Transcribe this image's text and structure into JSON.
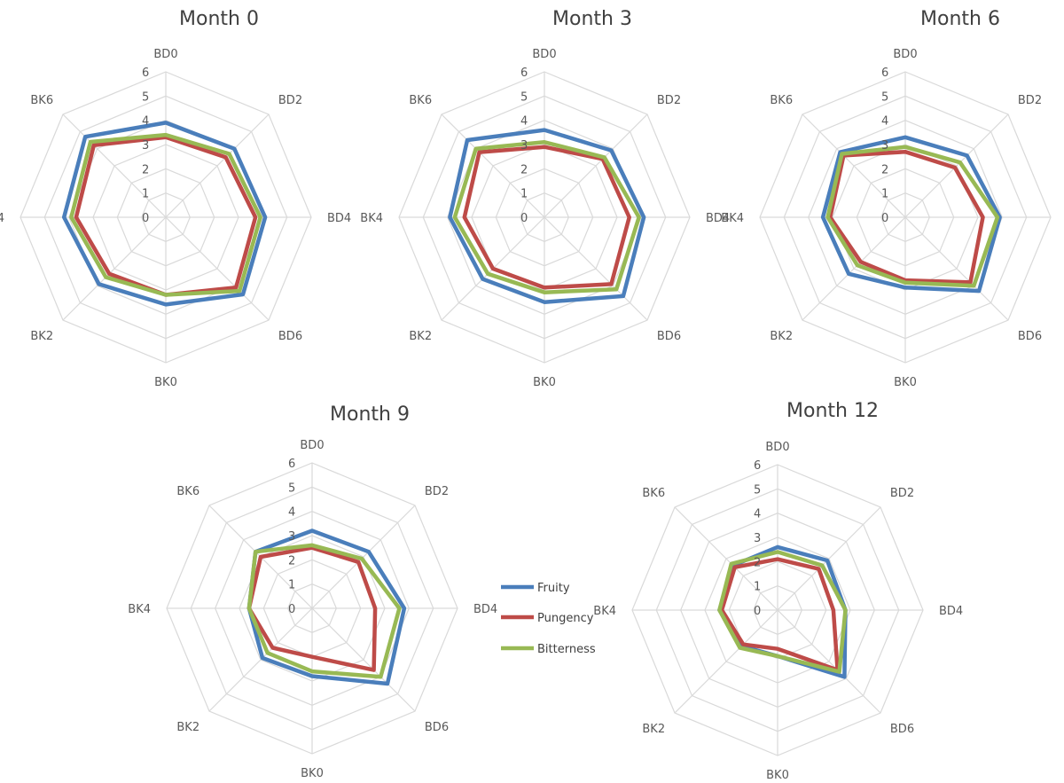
{
  "chart_data": {
    "type": "radar",
    "axes": [
      "BD0",
      "BD2",
      "BD4",
      "BD6",
      "BK0",
      "BK2",
      "BK4",
      "BK6"
    ],
    "rlim": [
      0,
      6
    ],
    "ticks": [
      "0",
      "1",
      "2",
      "3",
      "4",
      "5",
      "6"
    ],
    "colors": {
      "Fruity": "#4a7ebb",
      "Pungency": "#be4b48",
      "Bitterness": "#98b954"
    },
    "legend": {
      "placement": "center-bottom",
      "entries": [
        "Fruity",
        "Pungency",
        "Bitterness"
      ]
    },
    "charts": [
      {
        "title": "Month 0",
        "series": [
          {
            "name": "Fruity",
            "values": [
              3.9,
              4.0,
              4.1,
              4.5,
              3.6,
              3.9,
              4.2,
              4.7
            ]
          },
          {
            "name": "Pungency",
            "values": [
              3.3,
              3.5,
              3.7,
              4.1,
              3.2,
              3.3,
              3.7,
              4.2
            ]
          },
          {
            "name": "Bitterness",
            "values": [
              3.4,
              3.7,
              3.9,
              4.3,
              3.2,
              3.5,
              3.9,
              4.4
            ]
          }
        ]
      },
      {
        "title": "Month 3",
        "series": [
          {
            "name": "Fruity",
            "values": [
              3.6,
              3.9,
              4.1,
              4.6,
              3.5,
              3.6,
              3.9,
              4.5
            ]
          },
          {
            "name": "Pungency",
            "values": [
              2.9,
              3.4,
              3.5,
              3.9,
              2.9,
              3.0,
              3.3,
              3.8
            ]
          },
          {
            "name": "Bitterness",
            "values": [
              3.1,
              3.5,
              3.9,
              4.2,
              3.1,
              3.3,
              3.7,
              4.0
            ]
          }
        ]
      },
      {
        "title": "Month 6",
        "series": [
          {
            "name": "Fruity",
            "values": [
              3.3,
              3.6,
              3.9,
              4.3,
              2.9,
              3.3,
              3.4,
              3.8
            ]
          },
          {
            "name": "Pungency",
            "values": [
              2.7,
              2.9,
              3.2,
              3.8,
              2.6,
              2.6,
              3.1,
              3.6
            ]
          },
          {
            "name": "Bitterness",
            "values": [
              2.9,
              3.2,
              3.8,
              4.0,
              2.7,
              2.8,
              3.2,
              3.7
            ]
          }
        ]
      },
      {
        "title": "Month 9",
        "series": [
          {
            "name": "Fruity",
            "values": [
              3.2,
              3.3,
              3.8,
              4.4,
              2.8,
              2.9,
              2.6,
              3.3
            ]
          },
          {
            "name": "Pungency",
            "values": [
              2.5,
              2.7,
              2.6,
              3.6,
              2.0,
              2.3,
              2.6,
              3.0
            ]
          },
          {
            "name": "Bitterness",
            "values": [
              2.6,
              2.9,
              3.6,
              4.0,
              2.6,
              2.6,
              2.6,
              3.3
            ]
          }
        ]
      },
      {
        "title": "Month 12",
        "series": [
          {
            "name": "Fruity",
            "values": [
              2.6,
              2.9,
              2.8,
              3.9,
              1.9,
              2.1,
              2.4,
              2.6
            ]
          },
          {
            "name": "Pungency",
            "values": [
              2.1,
              2.4,
              2.3,
              3.5,
              1.6,
              2.0,
              2.3,
              2.5
            ]
          },
          {
            "name": "Bitterness",
            "values": [
              2.4,
              2.6,
              2.8,
              3.6,
              1.9,
              2.2,
              2.4,
              2.7
            ]
          }
        ]
      }
    ]
  }
}
